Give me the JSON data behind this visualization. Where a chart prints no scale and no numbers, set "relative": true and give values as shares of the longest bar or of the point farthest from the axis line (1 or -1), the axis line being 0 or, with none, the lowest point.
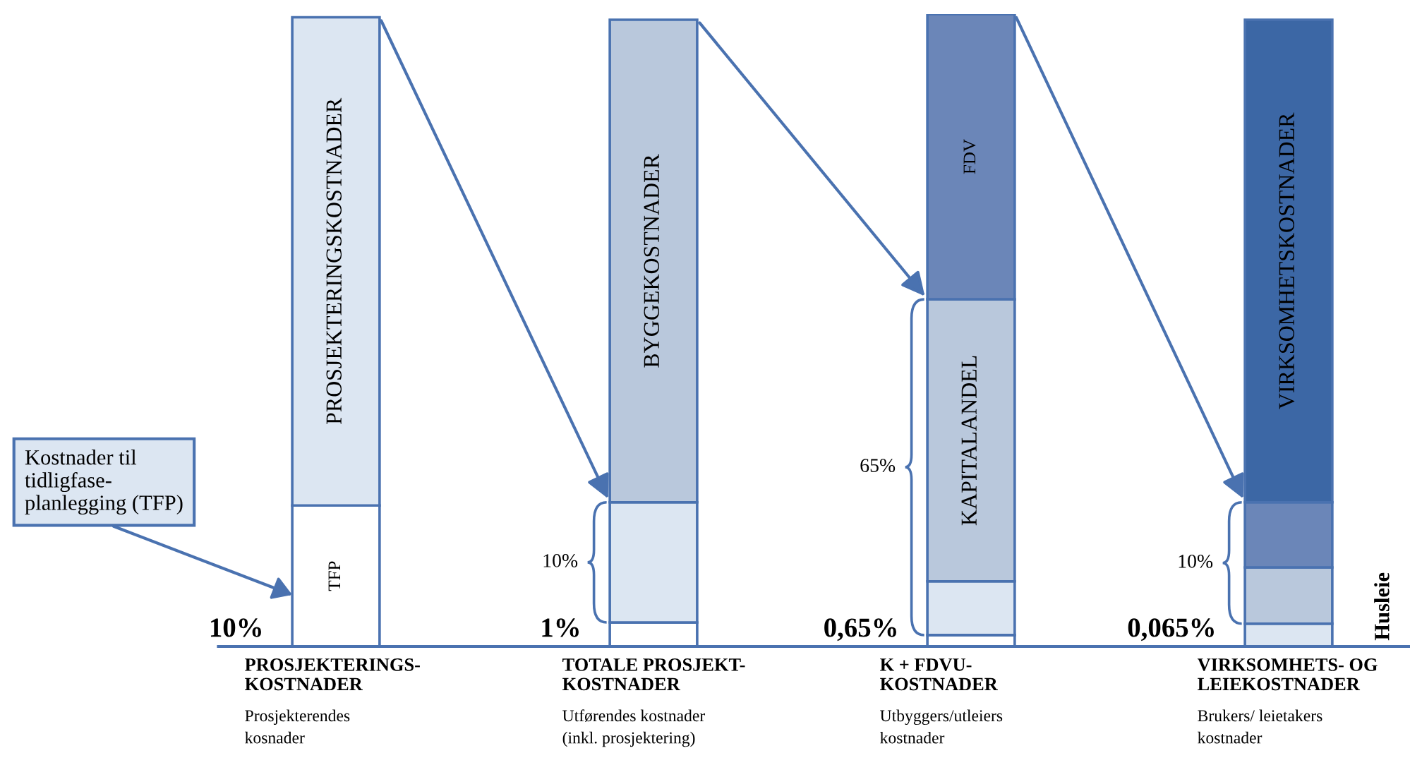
{
  "chart_data": {
    "type": "bar",
    "stacked": true,
    "relative": true,
    "categories": [
      "PROSJEKTERINGS-\nKOSTNADER",
      "TOTALE PROSJEKT-\nKOSTNADER",
      "K + FDVU-\nKOSTNADER",
      "VIRKSOMHETS- OG\nLEIEKOSTNADER"
    ],
    "series": [
      {
        "colors": [
          "#ffffff",
          "#ffffff",
          "#ffffff",
          "#dce6f2"
        ],
        "values": [
          0.223,
          0.038,
          0.018,
          0.036
        ]
      },
      {
        "colors": [
          "#dce6f2",
          "#dce6f2",
          "#dce6f2",
          "#b9c8dc"
        ],
        "values": [
          0.772,
          0.19,
          0.085,
          0.089
        ]
      },
      {
        "colors": [
          null,
          "#b9c8dc",
          "#b9c8dc",
          "#6b86b8"
        ],
        "values": [
          null,
          0.763,
          0.446,
          0.103
        ]
      },
      {
        "colors": [
          null,
          null,
          "#6b86b8",
          "#3c67a5"
        ],
        "values": [
          null,
          null,
          0.451,
          0.763
        ]
      }
    ],
    "annotations": [
      "Prosjekterendes\nkosnader",
      "Utførendes kostnader\n(inkl. prosjektering)",
      "Utbyggers/utleiers\nkostnader",
      "Brukers/ leietakers\nkostnader",
      "PROSJEKTERINGSKOSTNADER",
      "TFP",
      "BYGGEKOSTNADER",
      "FDV",
      "KAPITALANDEL",
      "VIRKSOMHETSKOSTNADER",
      {
        "text": "10%",
        "x": "PROSJEKTERINGS-\nKOSTNADER",
        "y": 0
      },
      {
        "text": "1%",
        "x": "TOTALE PROSJEKT-\nKOSTNADER",
        "y": 0
      },
      {
        "text": "0,65%",
        "x": "K + FDVU-\nKOSTNADER",
        "y": 0
      },
      {
        "text": "0,065%",
        "x": "VIRKSOMHETS- OG\nLEIEKOSTNADER",
        "y": 0
      },
      "10%",
      "65%",
      "10%",
      "Husleie",
      "Kostnader til\ntidligfase-\nplanlegging (TFP)"
    ]
  }
}
